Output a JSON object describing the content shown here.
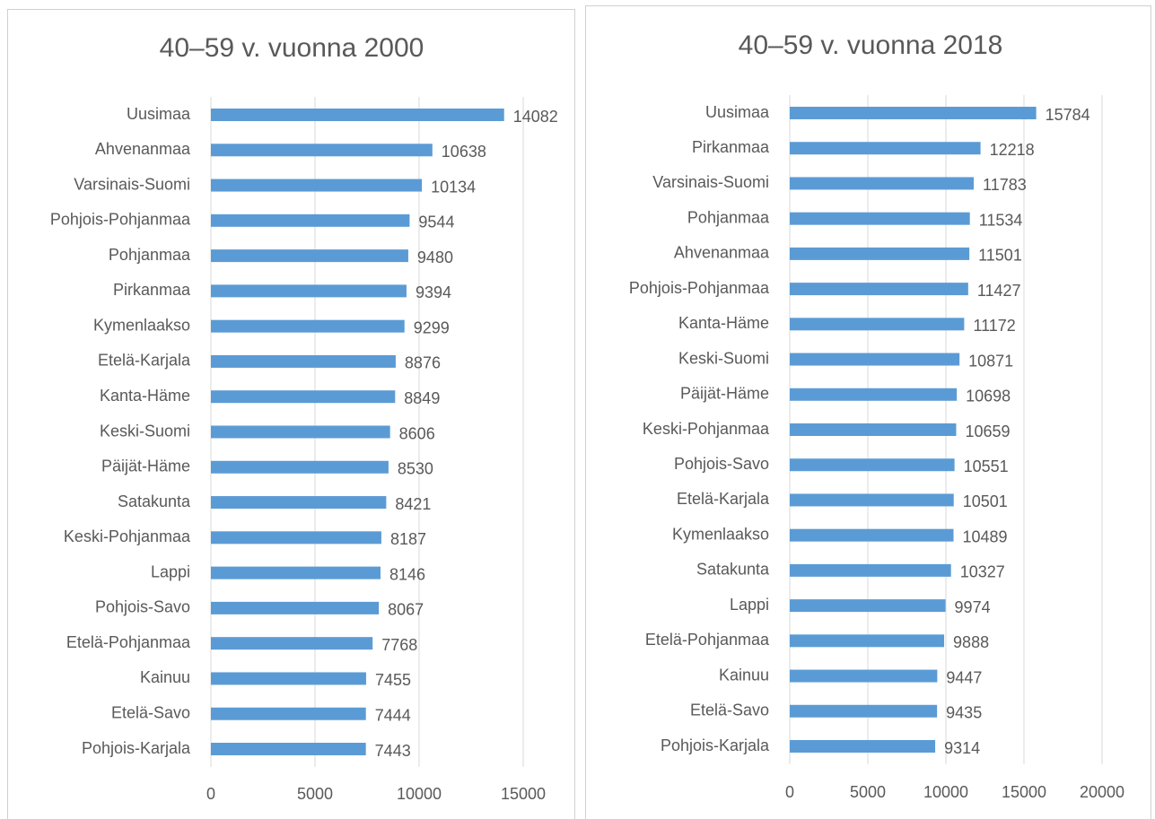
{
  "chart_data": [
    {
      "type": "barh",
      "title": "40–59 v. vuonna 2000",
      "color": "#5b9bd5",
      "grid": true,
      "categories": [
        "Uusimaa",
        "Ahvenanmaa",
        "Varsinais-Suomi",
        "Pohjois-Pohjanmaa",
        "Pohjanmaa",
        "Pirkanmaa",
        "Kymenlaakso",
        "Etelä-Karjala",
        "Kanta-Häme",
        "Keski-Suomi",
        "Päijät-Häme",
        "Satakunta",
        "Keski-Pohjanmaa",
        "Lappi",
        "Pohjois-Savo",
        "Etelä-Pohjanmaa",
        "Kainuu",
        "Etelä-Savo",
        "Pohjois-Karjala"
      ],
      "values": [
        14082,
        10638,
        10134,
        9544,
        9480,
        9394,
        9299,
        8876,
        8849,
        8606,
        8530,
        8421,
        8187,
        8146,
        8067,
        7768,
        7455,
        7444,
        7443
      ],
      "xlim": [
        0,
        15000
      ],
      "xticks": [
        0,
        5000,
        10000,
        15000
      ]
    },
    {
      "type": "barh",
      "title": "40–59 v. vuonna 2018",
      "color": "#5b9bd5",
      "grid": true,
      "categories": [
        "Uusimaa",
        "Pirkanmaa",
        "Varsinais-Suomi",
        "Pohjanmaa",
        "Ahvenanmaa",
        "Pohjois-Pohjanmaa",
        "Kanta-Häme",
        "Keski-Suomi",
        "Päijät-Häme",
        "Keski-Pohjanmaa",
        "Pohjois-Savo",
        "Etelä-Karjala",
        "Kymenlaakso",
        "Satakunta",
        "Lappi",
        "Etelä-Pohjanmaa",
        "Kainuu",
        "Etelä-Savo",
        "Pohjois-Karjala"
      ],
      "values": [
        15784,
        12218,
        11783,
        11534,
        11501,
        11427,
        11172,
        10871,
        10698,
        10659,
        10551,
        10501,
        10489,
        10327,
        9974,
        9888,
        9447,
        9435,
        9314
      ],
      "xlim": [
        0,
        20000
      ],
      "xticks": [
        0,
        5000,
        10000,
        15000,
        20000
      ]
    }
  ]
}
